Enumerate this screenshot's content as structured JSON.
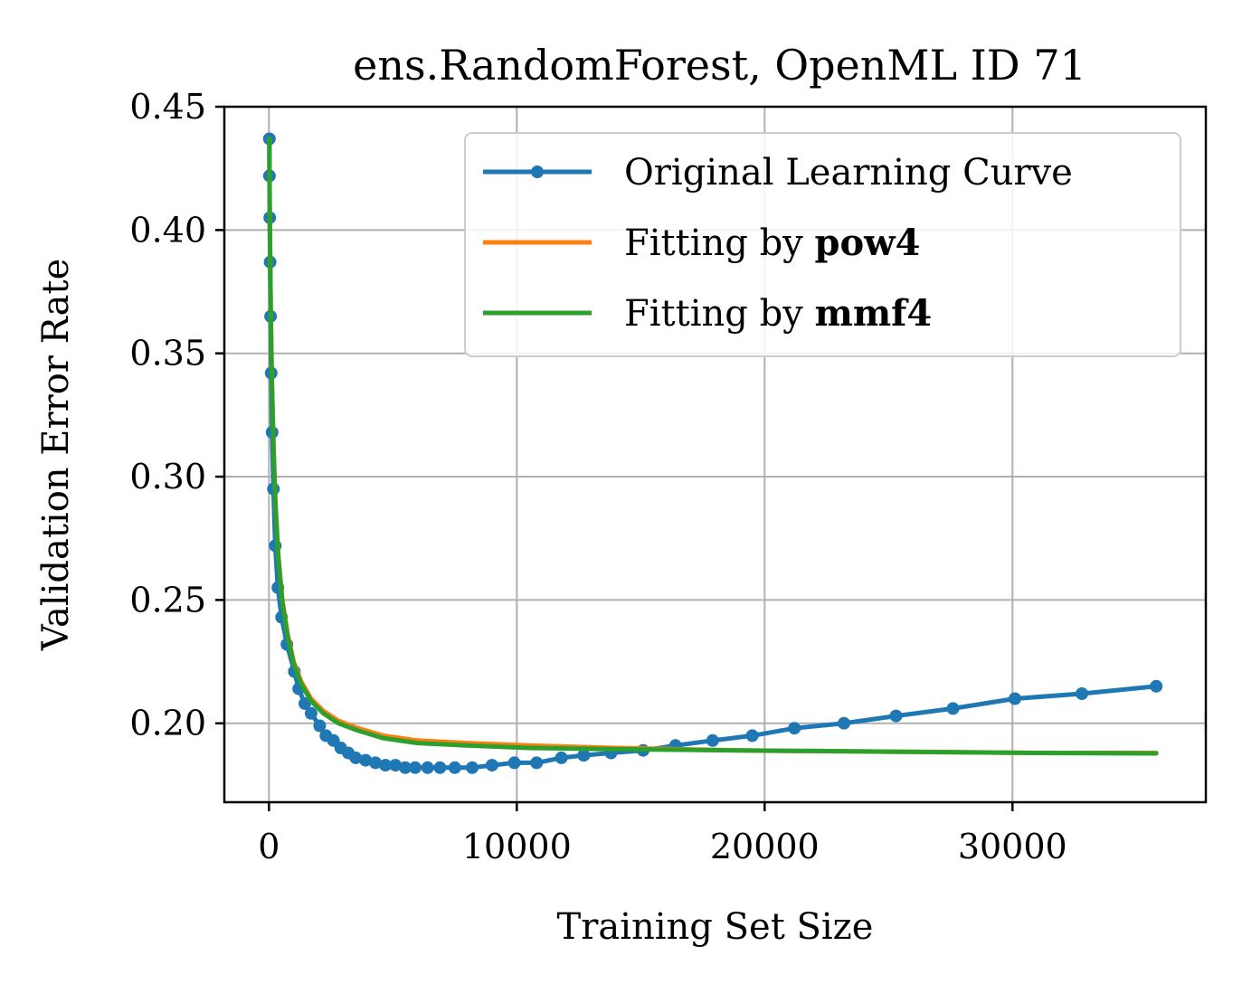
{
  "chart_data": {
    "type": "line",
    "title": "ens.RandomForest, OpenML ID 71",
    "xlabel": "Training Set Size",
    "ylabel": "Validation Error Rate",
    "xlim": [
      -1800,
      37800
    ],
    "ylim": [
      0.168,
      0.45
    ],
    "xticks": [
      0,
      10000,
      20000,
      30000
    ],
    "xtick_labels": [
      "0",
      "10000",
      "20000",
      "30000"
    ],
    "yticks": [
      0.2,
      0.25,
      0.3,
      0.35,
      0.4,
      0.45
    ],
    "ytick_labels": [
      "0.20",
      "0.25",
      "0.30",
      "0.35",
      "0.40",
      "0.45"
    ],
    "grid": true,
    "legend_position": "top-right",
    "series": [
      {
        "name": "Original Learning Curve",
        "legend_plain": "Original Learning Curve",
        "legend_bold": "",
        "color": "#1f77b4",
        "markers": true,
        "x": [
          16,
          23,
          32,
          45,
          64,
          91,
          128,
          181,
          256,
          362,
          512,
          724,
          1024,
          1200,
          1448,
          1700,
          2048,
          2300,
          2600,
          2896,
          3200,
          3500,
          3900,
          4300,
          4700,
          5100,
          5500,
          5900,
          6400,
          6900,
          7500,
          8200,
          9000,
          9900,
          10800,
          11800,
          12700,
          13800,
          15100,
          16400,
          17900,
          19500,
          21200,
          23200,
          25300,
          27600,
          30100,
          32800,
          35800
        ],
        "y": [
          0.437,
          0.422,
          0.405,
          0.387,
          0.365,
          0.342,
          0.318,
          0.295,
          0.272,
          0.255,
          0.243,
          0.232,
          0.221,
          0.214,
          0.208,
          0.204,
          0.199,
          0.195,
          0.193,
          0.19,
          0.188,
          0.186,
          0.185,
          0.184,
          0.183,
          0.183,
          0.182,
          0.182,
          0.182,
          0.182,
          0.182,
          0.182,
          0.183,
          0.184,
          0.184,
          0.186,
          0.187,
          0.188,
          0.189,
          0.191,
          0.193,
          0.195,
          0.198,
          0.2,
          0.203,
          0.206,
          0.21,
          0.212,
          0.215
        ]
      },
      {
        "name": "Fitting by pow4",
        "legend_plain": "Fitting by ",
        "legend_bold": "pow4",
        "color": "#ff7f0e",
        "markers": false,
        "x": [
          16,
          30,
          50,
          80,
          120,
          180,
          260,
          380,
          540,
          760,
          1000,
          1300,
          1700,
          2200,
          2800,
          3600,
          4600,
          6000,
          8000,
          10500,
          14000,
          19000,
          25000,
          31000,
          35800
        ],
        "y": [
          0.437,
          0.412,
          0.388,
          0.362,
          0.338,
          0.313,
          0.29,
          0.268,
          0.25,
          0.236,
          0.225,
          0.217,
          0.21,
          0.205,
          0.201,
          0.198,
          0.195,
          0.193,
          0.192,
          0.191,
          0.19,
          0.189,
          0.1885,
          0.188,
          0.188
        ]
      },
      {
        "name": "Fitting by mmf4",
        "legend_plain": "Fitting by ",
        "legend_bold": "mmf4",
        "color": "#2ca02c",
        "markers": false,
        "x": [
          16,
          30,
          50,
          80,
          120,
          180,
          260,
          380,
          540,
          760,
          1000,
          1300,
          1700,
          2200,
          2800,
          3600,
          4600,
          6000,
          8000,
          10500,
          14000,
          19000,
          25000,
          31000,
          35800
        ],
        "y": [
          0.437,
          0.411,
          0.387,
          0.361,
          0.337,
          0.312,
          0.289,
          0.267,
          0.249,
          0.235,
          0.224,
          0.216,
          0.209,
          0.204,
          0.2,
          0.197,
          0.194,
          0.192,
          0.191,
          0.19,
          0.1895,
          0.189,
          0.1885,
          0.188,
          0.1878
        ]
      }
    ]
  }
}
